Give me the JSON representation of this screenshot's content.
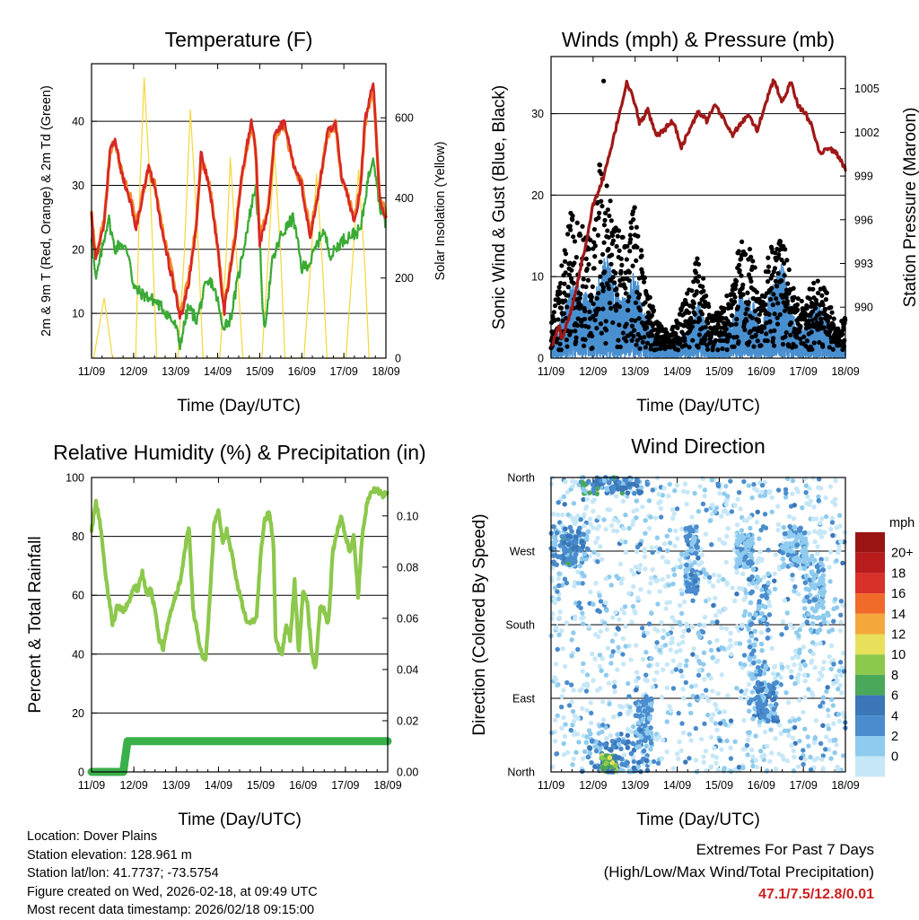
{
  "colors": {
    "temp_2m": "#d62728",
    "temp_9m": "#f28c28",
    "dewpoint": "#3aaa35",
    "insolation": "#f5d63a",
    "wind": "#4a90d0",
    "gust": "#000000",
    "pressure": "#a01818",
    "rh": "#8cc84b",
    "precip": "#3ab04a",
    "extremes_value": "#cc1f1f"
  },
  "footer": {
    "location": "Location: Dover Plains",
    "elevation": "Station elevation: 128.961 m",
    "latlon": "Station lat/lon: 41.7737; -73.5754",
    "created": "Figure created on Wed, 2026-02-18, at 09:49 UTC",
    "timestamp": "Most recent data timestamp: 2026/02/18 09:15:00",
    "extremes_title": "Extremes For Past 7 Days",
    "extremes_subtitle": "(High/Low/Max Wind/Total Precipitation)",
    "extremes_value": "47.1/7.5/12.8/0.01"
  },
  "chart_data": [
    {
      "id": "temperature",
      "type": "line",
      "title": "Temperature (F)",
      "xlabel": "Time (Day/UTC)",
      "ylabel": "2m & 9m T (Red, Orange) & 2m Td (Green)",
      "y2label": "Solar Insolation (Yellow)",
      "xlim": [
        0,
        7
      ],
      "x_ticks": [
        "11/09",
        "12/09",
        "13/09",
        "14/09",
        "15/09",
        "16/09",
        "17/09",
        "18/09"
      ],
      "ylim": [
        3,
        49
      ],
      "y_ticks": [
        10,
        20,
        30,
        40
      ],
      "y2lim": [
        0,
        735
      ],
      "y2_ticks": [
        0,
        200,
        400,
        600
      ],
      "grid_y": [
        10,
        20,
        30,
        40
      ],
      "series": [
        {
          "name": "2m T",
          "x": [
            0,
            0.1,
            0.3,
            0.45,
            0.55,
            0.75,
            0.95,
            1.05,
            1.2,
            1.35,
            1.5,
            1.7,
            1.9,
            2.0,
            2.1,
            2.3,
            2.5,
            2.6,
            2.8,
            3.0,
            3.15,
            3.4,
            3.6,
            3.8,
            3.9,
            4.0,
            4.2,
            4.35,
            4.6,
            4.8,
            5.0,
            5.2,
            5.4,
            5.6,
            5.8,
            5.95,
            6.1,
            6.25,
            6.4,
            6.5,
            6.7,
            6.85,
            7.0
          ],
          "values": [
            25,
            18,
            24,
            36,
            37,
            31,
            27,
            23,
            28,
            33,
            30,
            22,
            16,
            13,
            9,
            14,
            24,
            35,
            30,
            20,
            10,
            21,
            33,
            40,
            36,
            21,
            26,
            38,
            40,
            33,
            30,
            22,
            29,
            38,
            40,
            31,
            28,
            24,
            30,
            40,
            46,
            28,
            25
          ]
        },
        {
          "name": "9m T",
          "x": [
            0,
            0.1,
            0.3,
            0.45,
            0.55,
            0.75,
            0.95,
            1.05,
            1.2,
            1.35,
            1.5,
            1.7,
            1.9,
            2.0,
            2.1,
            2.3,
            2.5,
            2.6,
            2.8,
            3.0,
            3.15,
            3.4,
            3.6,
            3.8,
            3.9,
            4.0,
            4.2,
            4.35,
            4.6,
            4.8,
            5.0,
            5.2,
            5.4,
            5.6,
            5.8,
            5.95,
            6.1,
            6.25,
            6.4,
            6.5,
            6.7,
            6.85,
            7.0
          ],
          "values": [
            25.4,
            18.6,
            24.5,
            35.6,
            36.6,
            31.4,
            27.5,
            23.6,
            28.2,
            32.6,
            30.3,
            22.6,
            16.8,
            13.7,
            10,
            14.8,
            24.3,
            34.4,
            30.2,
            20.6,
            11,
            21.4,
            32.6,
            39.4,
            35.6,
            21.6,
            26.3,
            37.5,
            39.4,
            32.8,
            30.2,
            22.6,
            29.2,
            37.5,
            39.5,
            31.2,
            28.3,
            24.6,
            30.2,
            39.5,
            45.4,
            28.3,
            25.5
          ]
        },
        {
          "name": "2m Td",
          "x": [
            0,
            0.1,
            0.25,
            0.4,
            0.55,
            0.7,
            0.9,
            1.0,
            1.2,
            1.5,
            1.8,
            2.0,
            2.1,
            2.3,
            2.5,
            2.7,
            2.85,
            3.0,
            3.1,
            3.3,
            3.5,
            3.75,
            3.9,
            4.0,
            4.1,
            4.3,
            4.5,
            4.8,
            5.0,
            5.2,
            5.5,
            5.7,
            5.9,
            6.1,
            6.4,
            6.55,
            6.7,
            6.85,
            7.0
          ],
          "values": [
            22,
            15,
            20,
            25,
            20,
            21,
            19,
            14,
            13,
            12,
            10,
            8,
            5,
            11,
            9,
            14,
            15,
            12,
            8,
            9,
            16,
            25,
            30,
            21,
            7,
            18,
            22,
            25,
            17,
            18,
            23,
            19,
            21,
            22,
            23,
            30,
            35,
            27,
            24
          ]
        },
        {
          "name": "Solar Insolation",
          "axis": "y2",
          "x": [
            0.05,
            0.3,
            0.5,
            0.7,
            1.05,
            1.15,
            1.25,
            1.4,
            1.55,
            2.05,
            2.2,
            2.35,
            2.55,
            2.65,
            3.05,
            3.2,
            3.3,
            3.45,
            3.6,
            4.05,
            4.2,
            4.35,
            4.5,
            4.6,
            5.05,
            5.2,
            5.35,
            5.5,
            5.6,
            6.05,
            6.2,
            6.35,
            6.5,
            6.6
          ],
          "values": [
            0,
            150,
            0,
            0,
            0,
            430,
            700,
            420,
            0,
            0,
            250,
            620,
            250,
            0,
            0,
            250,
            500,
            250,
            0,
            0,
            250,
            520,
            250,
            0,
            0,
            220,
            460,
            220,
            0,
            0,
            230,
            470,
            230,
            0
          ]
        }
      ]
    },
    {
      "id": "winds",
      "type": "scatter",
      "title": "Winds (mph) & Pressure (mb)",
      "xlabel": "Time (Day/UTC)",
      "ylabel": "Sonic Wind & Gust (Blue, Black)",
      "y2label": "Station Pressure (Maroon)",
      "xlim": [
        0,
        7
      ],
      "x_ticks": [
        "11/09",
        "12/09",
        "13/09",
        "14/09",
        "15/09",
        "16/09",
        "17/09",
        "18/09"
      ],
      "ylim": [
        0,
        37
      ],
      "y_ticks": [
        0,
        10,
        20,
        30
      ],
      "y2lim": [
        986.5,
        1007.2
      ],
      "y2_ticks": [
        990,
        993,
        996,
        999,
        1002,
        1005
      ],
      "grid_y": [
        10,
        20,
        30
      ],
      "wind_envelope": {
        "x": [
          0,
          0.3,
          0.5,
          0.8,
          1.0,
          1.3,
          1.5,
          1.8,
          2.0,
          2.2,
          2.5,
          2.8,
          3.0,
          3.3,
          3.5,
          3.8,
          4.0,
          4.3,
          4.5,
          4.8,
          5.0,
          5.2,
          5.5,
          5.8,
          6.0,
          6.3,
          6.5,
          6.8,
          7.0
        ],
        "values": [
          1,
          5,
          8,
          7,
          6,
          11,
          8,
          6,
          10,
          5,
          2,
          1,
          2,
          3,
          6,
          2,
          2,
          4,
          7,
          6,
          3,
          7,
          10,
          4,
          3,
          6,
          5,
          1,
          2
        ]
      },
      "gust_envelope": {
        "x": [
          0,
          0.3,
          0.5,
          0.8,
          1.0,
          1.2,
          1.3,
          1.5,
          1.8,
          2.0,
          2.2,
          2.5,
          2.8,
          3.0,
          3.3,
          3.5,
          3.8,
          4.0,
          4.3,
          4.5,
          4.8,
          5.0,
          5.2,
          5.5,
          5.8,
          6.0,
          6.3,
          6.5,
          6.8,
          7.0
        ],
        "values": [
          3,
          12,
          18,
          15,
          14,
          26,
          24,
          16,
          13,
          19,
          10,
          4,
          2,
          4,
          8,
          12,
          4,
          5,
          8,
          14,
          12,
          6,
          13,
          14,
          7,
          6,
          9,
          8,
          3,
          4
        ]
      },
      "series": [
        {
          "name": "Station Pressure",
          "axis": "y2",
          "x": [
            0,
            0.2,
            0.25,
            0.5,
            0.8,
            1.0,
            1.2,
            1.4,
            1.6,
            1.8,
            2.0,
            2.1,
            2.3,
            2.5,
            2.7,
            2.9,
            3.1,
            3.3,
            3.5,
            3.7,
            3.9,
            4.1,
            4.3,
            4.5,
            4.7,
            4.9,
            5.1,
            5.3,
            5.5,
            5.7,
            5.9,
            6.0,
            6.2,
            6.4,
            6.6,
            6.8,
            7.0
          ],
          "values": [
            987.2,
            988.8,
            987.8,
            990.0,
            994.0,
            997.0,
            998.5,
            1000.5,
            1003.0,
            1005.4,
            1004.0,
            1002.6,
            1003.5,
            1001.7,
            1002.2,
            1002.8,
            1001.0,
            1002.2,
            1003.4,
            1002.8,
            1003.8,
            1003.0,
            1001.8,
            1002.5,
            1003.3,
            1002.1,
            1004.0,
            1005.6,
            1004.0,
            1005.5,
            1003.7,
            1003.5,
            1002.5,
            1000.5,
            1001.0,
            1000.5,
            999.5
          ]
        }
      ]
    },
    {
      "id": "humidity",
      "type": "line",
      "title": "Relative Humidity (%) & Precipitation (in)",
      "xlabel": "Time (Day/UTC)",
      "ylabel": "Percent & Total Rainfall",
      "xlim": [
        0,
        7
      ],
      "x_ticks": [
        "11/09",
        "12/09",
        "13/09",
        "14/09",
        "15/09",
        "16/09",
        "17/09",
        "18/09"
      ],
      "ylim": [
        0,
        100
      ],
      "y_ticks": [
        0,
        20,
        40,
        60,
        80,
        100
      ],
      "y2lim": [
        0,
        0.115
      ],
      "y2_ticks": [
        "0.00",
        "0.02",
        "0.04",
        "0.06",
        "0.08",
        "0.10"
      ],
      "grid_y": [
        20,
        40,
        60,
        80
      ],
      "series": [
        {
          "name": "Relative Humidity",
          "x": [
            0,
            0.1,
            0.2,
            0.35,
            0.5,
            0.6,
            0.75,
            0.9,
            1.0,
            1.1,
            1.2,
            1.3,
            1.4,
            1.5,
            1.6,
            1.7,
            1.8,
            1.95,
            2.1,
            2.2,
            2.3,
            2.4,
            2.6,
            2.7,
            2.8,
            2.9,
            3.0,
            3.1,
            3.2,
            3.3,
            3.5,
            3.7,
            3.9,
            4.0,
            4.1,
            4.2,
            4.3,
            4.35,
            4.5,
            4.6,
            4.7,
            4.8,
            4.9,
            5.0,
            5.1,
            5.2,
            5.3,
            5.4,
            5.5,
            5.6,
            5.7,
            5.9,
            6.0,
            6.1,
            6.2,
            6.3,
            6.4,
            6.5,
            6.6,
            6.7,
            6.8,
            6.9,
            7.0
          ],
          "values": [
            82,
            92,
            85,
            65,
            50,
            56,
            55,
            58,
            63,
            62,
            68,
            60,
            62,
            55,
            45,
            42,
            50,
            58,
            65,
            75,
            84,
            55,
            40,
            38,
            60,
            85,
            88,
            78,
            82,
            75,
            60,
            50,
            52,
            74,
            86,
            88,
            78,
            45,
            40,
            50,
            45,
            65,
            40,
            62,
            58,
            40,
            35,
            56,
            55,
            50,
            75,
            87,
            80,
            75,
            80,
            60,
            80,
            90,
            95,
            96,
            95,
            94,
            95
          ]
        },
        {
          "name": "Total Precipitation",
          "axis": "y2",
          "x": [
            0,
            0.75,
            0.8,
            0.85,
            7.0
          ],
          "values": [
            0.0,
            0.0,
            0.006,
            0.012,
            0.012
          ]
        }
      ]
    },
    {
      "id": "direction",
      "type": "scatter",
      "title": "Wind Direction",
      "xlabel": "Time (Day/UTC)",
      "ylabel": "Direction (Colored By Speed)",
      "xlim": [
        0,
        7
      ],
      "x_ticks": [
        "11/09",
        "12/09",
        "13/09",
        "14/09",
        "15/09",
        "16/09",
        "17/09",
        "18/09"
      ],
      "ylim": [
        0,
        360
      ],
      "y_ticks": [
        "North",
        "East",
        "South",
        "West",
        "North"
      ],
      "grid_y": [
        90,
        180,
        270
      ],
      "colorbar": {
        "unit": "mph",
        "labels": [
          "0",
          "2",
          "4",
          "6",
          "8",
          "10",
          "12",
          "14",
          "16",
          "18",
          "20+"
        ],
        "colors": [
          "#c6e7f7",
          "#8ecbee",
          "#4a8ccd",
          "#3a76b8",
          "#4aa85a",
          "#8cc84b",
          "#e8e05a",
          "#f5a83a",
          "#f06a2a",
          "#d8302a",
          "#b81c1c",
          "#9a1414"
        ]
      }
    }
  ]
}
